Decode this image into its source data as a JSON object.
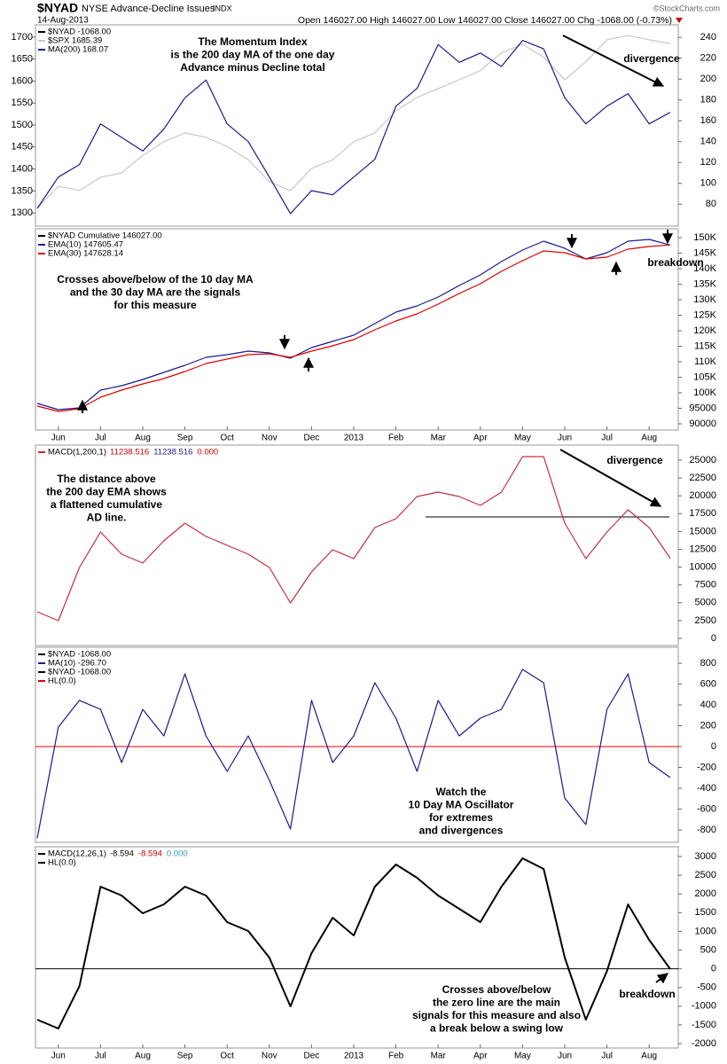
{
  "header": {
    "symbol": "$NYAD",
    "name": "NYSE Advance-Decline Issues",
    "exchange": "INDX",
    "date": "14-Aug-2013",
    "quote": "Open 146027.00  High 146027.00  Low 146027.00  Close 146027.00  Chg -1068.00 (-0.73%)",
    "copyright": "©StockCharts.com"
  },
  "chart_data": [
    {
      "type": "line",
      "legend_title": "$NYAD  -1068.00",
      "yaxis_side": "left",
      "ylim": [
        1270,
        1728
      ],
      "yticks": [
        1300,
        1350,
        1400,
        1450,
        1500,
        1550,
        1600,
        1650,
        1700
      ],
      "y2lim": [
        59,
        252
      ],
      "y2ticks": [
        80,
        100,
        120,
        140,
        160,
        180,
        200,
        220,
        240
      ],
      "series": [
        {
          "name": "$SPX 1685.39",
          "color": "#c8c8c8",
          "values": [
            1310,
            1361,
            1351,
            1381,
            1391,
            1431,
            1462,
            1482,
            1472,
            1451,
            1421,
            1371,
            1351,
            1401,
            1421,
            1462,
            1482,
            1532,
            1563,
            1583,
            1603,
            1624,
            1664,
            1684,
            1654,
            1603,
            1644,
            1694,
            1704,
            1694,
            1685.39
          ]
        },
        {
          "name": "MA(200) 168.07",
          "color": "#1a1a8c",
          "axis": "y2",
          "values": [
            76,
            106,
            118,
            157,
            144,
            131,
            152,
            182,
            199,
            157,
            140,
            106,
            71,
            93,
            89,
            106,
            123,
            174,
            191,
            233,
            216,
            225,
            212,
            237,
            229,
            182,
            157,
            174,
            186,
            157,
            168.07
          ]
        }
      ],
      "annotations": [
        [
          "The Momentum Index",
          "is the 200 day MA of the one day",
          "Advance minus Decline total"
        ],
        [
          "divergence"
        ]
      ]
    },
    {
      "type": "line",
      "legend_title": "$NYAD  Cumulative 146027.00",
      "yaxis_side": "right",
      "ylim": [
        88000,
        152860
      ],
      "yticks": [
        {
          "value": 150000,
          "label": "150K"
        },
        {
          "value": 145000,
          "label": "145K"
        },
        {
          "value": 140000,
          "label": "140K"
        },
        {
          "value": 135000,
          "label": "135K"
        },
        {
          "value": 130000,
          "label": "130K"
        },
        {
          "value": 125000,
          "label": "125K"
        },
        {
          "value": 120000,
          "label": "120K"
        },
        {
          "value": 115000,
          "label": "115K"
        },
        {
          "value": 110000,
          "label": "110K"
        },
        {
          "value": 105000,
          "label": "105K"
        },
        {
          "value": 100000,
          "label": "100K"
        },
        95000,
        90000
      ],
      "categories": [
        null,
        "Jun",
        null,
        "Jul",
        null,
        "Aug",
        null,
        "Sep",
        null,
        "Oct",
        null,
        "Nov",
        null,
        "Dec",
        null,
        "2013",
        null,
        "Feb",
        null,
        "Mar",
        null,
        "Apr",
        null,
        "May",
        null,
        "Jun",
        null,
        "Jul",
        null,
        "Aug",
        null
      ],
      "series": [
        {
          "name": "EMA(10) 147605.47",
          "color": "#1a1a8c",
          "values": [
            96571,
            94571,
            95143,
            100857,
            102286,
            104286,
            106571,
            108857,
            111429,
            112286,
            113429,
            112857,
            111143,
            114571,
            116571,
            118571,
            122286,
            126000,
            128000,
            130857,
            134571,
            138000,
            142286,
            146000,
            148857,
            146571,
            143143,
            145143,
            148857,
            149429,
            147605.47
          ]
        },
        {
          "name": "EMA(30) 147628.14",
          "color": "#dd0000",
          "values": [
            95714,
            94000,
            94857,
            98571,
            100857,
            102857,
            104571,
            106857,
            109429,
            110857,
            112286,
            112571,
            111429,
            113429,
            115143,
            117143,
            120286,
            123143,
            125429,
            128571,
            132000,
            135143,
            139143,
            142571,
            145714,
            145143,
            143143,
            143714,
            146286,
            147143,
            147628.14
          ]
        }
      ],
      "annotations": [
        [
          "Crosses above/below of the 10 day MA",
          "and the 30 day MA are the signals",
          "for this measure"
        ],
        [
          "breakdown"
        ]
      ]
    },
    {
      "type": "line",
      "yaxis_side": "right",
      "ylim": [
        -995,
        27114
      ],
      "yticks": [
        0,
        2500,
        5000,
        7500,
        10000,
        12500,
        15000,
        17500,
        20000,
        22500,
        25000
      ],
      "series": [
        {
          "name": "MACD(1,200,1)",
          "color": "#c0303c",
          "legend_values": [
            {
              "text": "11238.516",
              "color": "#cc0000"
            },
            {
              "text": "11238.516",
              "color": "#1a1a8c"
            },
            {
              "text": "0.000",
              "color": "#cc0000"
            }
          ],
          "values": [
            3731,
            2488,
            9950,
            14925,
            11816,
            10572,
            13682,
            16169,
            14303,
            13060,
            11816,
            9950,
            4975,
            9328,
            12438,
            11194,
            15547,
            16791,
            19900,
            20522,
            19900,
            18657,
            20522,
            25498,
            25498,
            16169,
            11194,
            14925,
            18035,
            15547,
            11238.516
          ]
        }
      ],
      "annotations": [
        [
          "The distance above",
          "the 200 day EMA shows",
          "a flattened cumulative",
          "AD line."
        ],
        [
          "divergence"
        ]
      ]
    },
    {
      "type": "line",
      "legend_title": "$NYAD  -1068.00",
      "yaxis_side": "right",
      "ylim": [
        -919,
        953
      ],
      "yticks": [
        -800,
        -600,
        -400,
        -200,
        0,
        200,
        400,
        600,
        800
      ],
      "series": [
        {
          "name": "MA(10) -296.70",
          "color": "#1a1a8c",
          "values": [
            -880,
            187,
            443,
            357,
            -153,
            357,
            102,
            698,
            102,
            -238,
            102,
            -323,
            -791,
            443,
            -153,
            102,
            613,
            272,
            -238,
            443,
            102,
            272,
            357,
            740,
            613,
            -494,
            -749,
            357,
            698,
            -153,
            -296.7
          ]
        }
      ],
      "legend_extra": [
        {
          "name": "$NYAD -1068.00",
          "color": "#000000"
        }
      ],
      "hlines": [
        {
          "name": "HL(0.0)",
          "color": "#dd0000",
          "value": 0
        }
      ],
      "annotations": [
        [
          "Watch the",
          "10 Day MA Oscillator",
          "for extremes",
          "and divergences"
        ]
      ]
    },
    {
      "type": "line",
      "yaxis_side": "right",
      "ylim": [
        -2118,
        3261
      ],
      "yticks": [
        -2000,
        -1500,
        -1000,
        -500,
        0,
        500,
        1000,
        1500,
        2000,
        2500,
        3000
      ],
      "categories": [
        null,
        "Jun",
        null,
        "Jul",
        null,
        "Aug",
        null,
        "Sep",
        null,
        "Oct",
        null,
        "Nov",
        null,
        "Dec",
        null,
        "2013",
        null,
        "Feb",
        null,
        "Mar",
        null,
        "Apr",
        null,
        "May",
        null,
        "Jun",
        null,
        "Jul",
        null,
        "Aug",
        null
      ],
      "series": [
        {
          "name": "MACD(12,26,1)",
          "color": "#000000",
          "legend_values": [
            {
              "text": "-8.594",
              "color": "#000000"
            },
            {
              "text": "-8.594",
              "color": "#cc0000"
            },
            {
              "text": "0.000",
              "color": "#2a9ab0"
            }
          ],
          "values": [
            -1360,
            -1597,
            -464,
            2194,
            1957,
            1483,
            1720,
            2194,
            1957,
            1246,
            1009,
            299,
            -1005,
            417,
            1365,
            891,
            2194,
            2787,
            2431,
            1957,
            1602,
            1246,
            2194,
            2953,
            2668,
            299,
            -1360,
            -62,
            1720,
            773,
            -8.594
          ]
        }
      ],
      "hlines": [
        {
          "name": "HL(0.0)",
          "color": "#000000",
          "value": 0
        }
      ],
      "annotations": [
        [
          "Crosses above/below",
          "the zero line are the main",
          "signals for this measure and also",
          "a break below a swing low"
        ],
        [
          "breakdown"
        ]
      ]
    }
  ]
}
